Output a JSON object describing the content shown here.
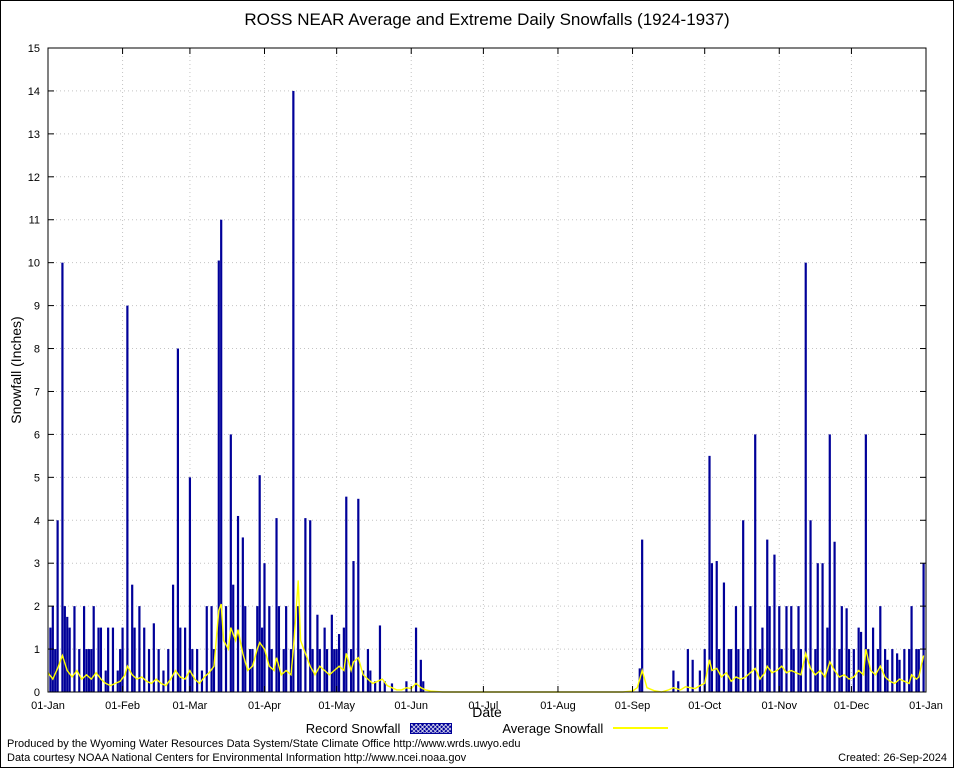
{
  "title": "ROSS NEAR Average and Extreme Daily Snowfalls (1924-1937)",
  "footer": {
    "line1": "Produced by the Wyoming Water Resources Data System/State Climate Office http://www.wrds.uwyo.edu",
    "line2": "Data courtesy NOAA National Centers for Environmental Information http://www.ncei.noaa.gov",
    "created": "Created: 26-Sep-2024"
  },
  "chart_data": {
    "type": "bar+line",
    "title": "ROSS NEAR Average and Extreme Daily Snowfalls (1924-1937)",
    "xlabel": "Date",
    "ylabel": "Snowfall (Inches)",
    "ylim": [
      0,
      15
    ],
    "y_ticks": [
      0,
      1,
      2,
      3,
      4,
      5,
      6,
      7,
      8,
      9,
      10,
      11,
      12,
      13,
      14,
      15
    ],
    "x_tick_labels": [
      "01-Jan",
      "01-Feb",
      "01-Mar",
      "01-Apr",
      "01-May",
      "01-Jun",
      "01-Jul",
      "01-Aug",
      "01-Sep",
      "01-Oct",
      "01-Nov",
      "01-Dec",
      "01-Jan"
    ],
    "x_tick_days": [
      1,
      32,
      60,
      91,
      121,
      152,
      182,
      213,
      244,
      274,
      305,
      335,
      366
    ],
    "x_range_days": [
      1,
      366
    ],
    "grid": true,
    "legend_position": "bottom-center",
    "colors": {
      "record": "#000099",
      "average": "#ffff00"
    },
    "series": [
      {
        "name": "Record Snowfall",
        "type": "bar",
        "points": [
          [
            2,
            1.5
          ],
          [
            3,
            2
          ],
          [
            4,
            1
          ],
          [
            5,
            4
          ],
          [
            7,
            10
          ],
          [
            8,
            2
          ],
          [
            9,
            1.75
          ],
          [
            10,
            1.5
          ],
          [
            12,
            2
          ],
          [
            14,
            1
          ],
          [
            16,
            2
          ],
          [
            17,
            1
          ],
          [
            18,
            1
          ],
          [
            19,
            1
          ],
          [
            20,
            2
          ],
          [
            22,
            1.5
          ],
          [
            23,
            1.5
          ],
          [
            25,
            0.5
          ],
          [
            26,
            1.5
          ],
          [
            28,
            1.5
          ],
          [
            30,
            0.5
          ],
          [
            31,
            1
          ],
          [
            32,
            1.5
          ],
          [
            34,
            9
          ],
          [
            36,
            2.5
          ],
          [
            37,
            1.5
          ],
          [
            39,
            2
          ],
          [
            41,
            1.5
          ],
          [
            43,
            1
          ],
          [
            45,
            1.6
          ],
          [
            47,
            1
          ],
          [
            49,
            0.5
          ],
          [
            51,
            1
          ],
          [
            53,
            2.5
          ],
          [
            55,
            8
          ],
          [
            56,
            1.5
          ],
          [
            58,
            1.5
          ],
          [
            60,
            5
          ],
          [
            61,
            1
          ],
          [
            63,
            1
          ],
          [
            65,
            0.5
          ],
          [
            67,
            2
          ],
          [
            69,
            2
          ],
          [
            70,
            1
          ],
          [
            72,
            10.05
          ],
          [
            73,
            11
          ],
          [
            75,
            2
          ],
          [
            77,
            6
          ],
          [
            78,
            2.5
          ],
          [
            80,
            4.1
          ],
          [
            82,
            3.6
          ],
          [
            83,
            2
          ],
          [
            85,
            1
          ],
          [
            86,
            1
          ],
          [
            88,
            2
          ],
          [
            89,
            5.05
          ],
          [
            90,
            1.5
          ],
          [
            91,
            3
          ],
          [
            93,
            2
          ],
          [
            94,
            1
          ],
          [
            96,
            4.05
          ],
          [
            97,
            2
          ],
          [
            99,
            1
          ],
          [
            100,
            2
          ],
          [
            102,
            1
          ],
          [
            103,
            14
          ],
          [
            105,
            2
          ],
          [
            106,
            1
          ],
          [
            108,
            4.05
          ],
          [
            110,
            4
          ],
          [
            111,
            1
          ],
          [
            113,
            1.8
          ],
          [
            114,
            1
          ],
          [
            116,
            1.5
          ],
          [
            117,
            1
          ],
          [
            119,
            1.8
          ],
          [
            120,
            1
          ],
          [
            121,
            1
          ],
          [
            122,
            1.35
          ],
          [
            124,
            1.5
          ],
          [
            125,
            4.55
          ],
          [
            127,
            1
          ],
          [
            128,
            3.05
          ],
          [
            130,
            4.5
          ],
          [
            132,
            0.5
          ],
          [
            134,
            1
          ],
          [
            135,
            0.5
          ],
          [
            137,
            0.25
          ],
          [
            139,
            1.55
          ],
          [
            141,
            0.25
          ],
          [
            144,
            0.2
          ],
          [
            150,
            0.25
          ],
          [
            154,
            1.5
          ],
          [
            156,
            0.75
          ],
          [
            157,
            0.25
          ],
          [
            247,
            0.55
          ],
          [
            248,
            3.55
          ],
          [
            261,
            0.5
          ],
          [
            263,
            0.25
          ],
          [
            267,
            1
          ],
          [
            269,
            0.75
          ],
          [
            272,
            0.5
          ],
          [
            274,
            1
          ],
          [
            276,
            5.5
          ],
          [
            277,
            3
          ],
          [
            279,
            3.05
          ],
          [
            280,
            1
          ],
          [
            282,
            2.55
          ],
          [
            284,
            1
          ],
          [
            285,
            1
          ],
          [
            287,
            2
          ],
          [
            288,
            1
          ],
          [
            290,
            4
          ],
          [
            292,
            1
          ],
          [
            293,
            2
          ],
          [
            295,
            6
          ],
          [
            297,
            1
          ],
          [
            298,
            1.5
          ],
          [
            300,
            3.55
          ],
          [
            301,
            2
          ],
          [
            303,
            3.2
          ],
          [
            305,
            2
          ],
          [
            306,
            1
          ],
          [
            308,
            2
          ],
          [
            310,
            2
          ],
          [
            311,
            1
          ],
          [
            313,
            2
          ],
          [
            314,
            1
          ],
          [
            316,
            10
          ],
          [
            318,
            4
          ],
          [
            320,
            1
          ],
          [
            321,
            3
          ],
          [
            323,
            3
          ],
          [
            325,
            1.5
          ],
          [
            326,
            6
          ],
          [
            328,
            3.5
          ],
          [
            330,
            1
          ],
          [
            331,
            2
          ],
          [
            333,
            1.95
          ],
          [
            334,
            1
          ],
          [
            336,
            1
          ],
          [
            338,
            1.5
          ],
          [
            339,
            1.4
          ],
          [
            341,
            6
          ],
          [
            342,
            1
          ],
          [
            344,
            1.5
          ],
          [
            346,
            1
          ],
          [
            347,
            2
          ],
          [
            349,
            1
          ],
          [
            350,
            0.75
          ],
          [
            352,
            1
          ],
          [
            354,
            0.9
          ],
          [
            355,
            0.75
          ],
          [
            357,
            1
          ],
          [
            359,
            1
          ],
          [
            360,
            2
          ],
          [
            362,
            1
          ],
          [
            363,
            1
          ],
          [
            365,
            3
          ]
        ]
      },
      {
        "name": "Average Snowfall",
        "type": "line",
        "points": [
          [
            1,
            0.45
          ],
          [
            3,
            0.3
          ],
          [
            5,
            0.55
          ],
          [
            7,
            0.85
          ],
          [
            9,
            0.5
          ],
          [
            11,
            0.35
          ],
          [
            13,
            0.5
          ],
          [
            15,
            0.3
          ],
          [
            17,
            0.4
          ],
          [
            19,
            0.3
          ],
          [
            21,
            0.45
          ],
          [
            23,
            0.3
          ],
          [
            25,
            0.2
          ],
          [
            27,
            0.15
          ],
          [
            29,
            0.2
          ],
          [
            31,
            0.25
          ],
          [
            33,
            0.4
          ],
          [
            34,
            0.6
          ],
          [
            36,
            0.4
          ],
          [
            38,
            0.3
          ],
          [
            40,
            0.35
          ],
          [
            42,
            0.25
          ],
          [
            44,
            0.2
          ],
          [
            46,
            0.3
          ],
          [
            48,
            0.2
          ],
          [
            50,
            0.15
          ],
          [
            52,
            0.3
          ],
          [
            54,
            0.5
          ],
          [
            56,
            0.35
          ],
          [
            58,
            0.3
          ],
          [
            60,
            0.5
          ],
          [
            62,
            0.3
          ],
          [
            64,
            0.2
          ],
          [
            66,
            0.35
          ],
          [
            68,
            0.45
          ],
          [
            70,
            0.6
          ],
          [
            72,
            1.9
          ],
          [
            73,
            2.05
          ],
          [
            74,
            1.2
          ],
          [
            76,
            1.0
          ],
          [
            77,
            1.5
          ],
          [
            79,
            1.2
          ],
          [
            80,
            1.45
          ],
          [
            82,
            0.9
          ],
          [
            84,
            0.5
          ],
          [
            86,
            0.6
          ],
          [
            88,
            1.0
          ],
          [
            89,
            1.15
          ],
          [
            91,
            1.0
          ],
          [
            93,
            0.6
          ],
          [
            95,
            0.5
          ],
          [
            96,
            0.8
          ],
          [
            98,
            0.4
          ],
          [
            100,
            0.5
          ],
          [
            102,
            0.4
          ],
          [
            103,
            1.0
          ],
          [
            105,
            2.6
          ],
          [
            106,
            1.2
          ],
          [
            108,
            0.9
          ],
          [
            110,
            0.6
          ],
          [
            112,
            0.4
          ],
          [
            114,
            0.6
          ],
          [
            116,
            0.5
          ],
          [
            118,
            0.4
          ],
          [
            120,
            0.5
          ],
          [
            122,
            0.6
          ],
          [
            124,
            0.5
          ],
          [
            125,
            0.9
          ],
          [
            127,
            0.5
          ],
          [
            128,
            0.7
          ],
          [
            130,
            0.8
          ],
          [
            132,
            0.4
          ],
          [
            134,
            0.3
          ],
          [
            136,
            0.2
          ],
          [
            138,
            0.25
          ],
          [
            140,
            0.3
          ],
          [
            142,
            0.15
          ],
          [
            144,
            0.1
          ],
          [
            146,
            0.05
          ],
          [
            148,
            0.05
          ],
          [
            150,
            0.1
          ],
          [
            152,
            0.08
          ],
          [
            154,
            0.2
          ],
          [
            156,
            0.1
          ],
          [
            158,
            0.05
          ],
          [
            160,
            0.02
          ],
          [
            165,
            0
          ],
          [
            180,
            0
          ],
          [
            200,
            0
          ],
          [
            220,
            0
          ],
          [
            240,
            0
          ],
          [
            244,
            0.02
          ],
          [
            246,
            0.1
          ],
          [
            248,
            0.5
          ],
          [
            250,
            0.1
          ],
          [
            253,
            0.03
          ],
          [
            256,
            0
          ],
          [
            259,
            0.05
          ],
          [
            261,
            0.1
          ],
          [
            264,
            0.05
          ],
          [
            266,
            0.12
          ],
          [
            268,
            0.1
          ],
          [
            270,
            0.08
          ],
          [
            272,
            0.15
          ],
          [
            274,
            0.2
          ],
          [
            276,
            0.75
          ],
          [
            277,
            0.5
          ],
          [
            279,
            0.55
          ],
          [
            281,
            0.35
          ],
          [
            283,
            0.45
          ],
          [
            285,
            0.25
          ],
          [
            287,
            0.35
          ],
          [
            289,
            0.3
          ],
          [
            291,
            0.35
          ],
          [
            293,
            0.45
          ],
          [
            295,
            0.55
          ],
          [
            297,
            0.3
          ],
          [
            299,
            0.45
          ],
          [
            300,
            0.6
          ],
          [
            302,
            0.45
          ],
          [
            304,
            0.5
          ],
          [
            306,
            0.6
          ],
          [
            308,
            0.45
          ],
          [
            310,
            0.5
          ],
          [
            312,
            0.45
          ],
          [
            314,
            0.4
          ],
          [
            316,
            0.9
          ],
          [
            318,
            0.55
          ],
          [
            320,
            0.4
          ],
          [
            322,
            0.5
          ],
          [
            324,
            0.35
          ],
          [
            326,
            0.7
          ],
          [
            328,
            0.5
          ],
          [
            330,
            0.35
          ],
          [
            332,
            0.4
          ],
          [
            334,
            0.3
          ],
          [
            336,
            0.35
          ],
          [
            338,
            0.5
          ],
          [
            340,
            0.4
          ],
          [
            341,
            1.0
          ],
          [
            343,
            0.5
          ],
          [
            345,
            0.4
          ],
          [
            347,
            0.6
          ],
          [
            349,
            0.35
          ],
          [
            351,
            0.25
          ],
          [
            353,
            0.2
          ],
          [
            355,
            0.3
          ],
          [
            357,
            0.25
          ],
          [
            359,
            0.2
          ],
          [
            360,
            0.4
          ],
          [
            362,
            0.3
          ],
          [
            363,
            0.35
          ],
          [
            365,
            0.85
          ]
        ]
      }
    ]
  }
}
